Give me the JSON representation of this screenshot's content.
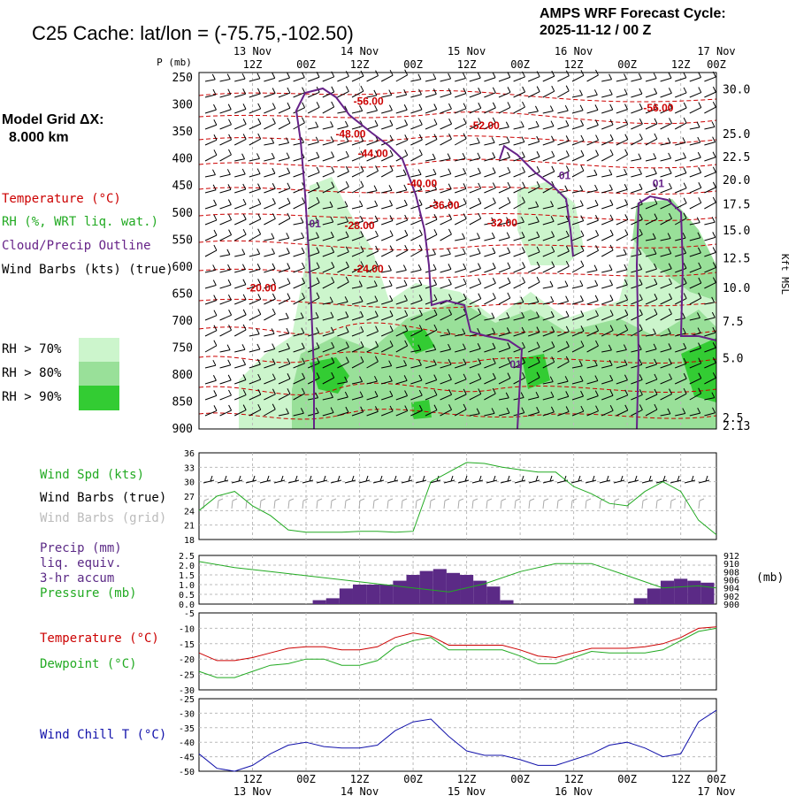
{
  "header": {
    "title": "C25 Cache:  lat/lon = (-75.75,-102.50)",
    "cycle_line1": "AMPS WRF Forecast Cycle:",
    "cycle_line2": "2025-11-12 / 00  Z"
  },
  "grid_info": {
    "line1": "Model Grid ΔX:",
    "line2": "8.000 km"
  },
  "time_axis": {
    "top_hours": [
      "12Z",
      "00Z",
      "12Z",
      "00Z",
      "12Z",
      "00Z",
      "12Z",
      "00Z",
      "12Z",
      "00Z"
    ],
    "days": [
      {
        "label": "13 Nov",
        "at": 1
      },
      {
        "label": "14 Nov",
        "at": 3
      },
      {
        "label": "15 Nov",
        "at": 5
      },
      {
        "label": "16 Nov",
        "at": 7
      },
      {
        "label": "17 Nov",
        "at": 9
      }
    ],
    "range_hours": [
      0,
      116
    ]
  },
  "colors": {
    "temperature": "#cc0000",
    "rh": "#22aa22",
    "cloud": "#662288",
    "wind_chill": "#1111aa",
    "rh70": "#ccf5cc",
    "rh80": "#99e099",
    "rh90": "#33cc33",
    "precip": "#5b2a86",
    "grid_barb": "#aaaaaa"
  },
  "legend": {
    "temperature": "Temperature (°C)",
    "rh": "RH (%, WRT liq. wat.)",
    "cloud": "Cloud/Precip Outline",
    "wind": "Wind Barbs (kts) (true)",
    "rh70": "RH > 70%",
    "rh80": "RH > 80%",
    "rh90": "RH > 90%"
  },
  "chart_data": [
    {
      "type": "time-height cross-section",
      "left_axis_title": "P (mb)",
      "right_axis_title": "Kft MSL",
      "pressure_ticks": [
        250,
        300,
        350,
        400,
        450,
        500,
        550,
        600,
        650,
        700,
        750,
        800,
        850,
        900
      ],
      "kft_ticks": [
        {
          "label": "30.0",
          "p": 272
        },
        {
          "label": "25.0",
          "p": 355
        },
        {
          "label": "22.5",
          "p": 397
        },
        {
          "label": "20.0",
          "p": 440
        },
        {
          "label": "17.5",
          "p": 485
        },
        {
          "label": "15.0",
          "p": 533
        },
        {
          "label": "12.5",
          "p": 585
        },
        {
          "label": "10.0",
          "p": 640
        },
        {
          "label": "7.5",
          "p": 702
        },
        {
          "label": "5.0",
          "p": 770
        },
        {
          "label": "2.5",
          "p": 880
        },
        {
          "label": "2.13",
          "p": 895
        }
      ],
      "temperature_labels": [
        {
          "text": "-56.00",
          "t": 38,
          "p": 300
        },
        {
          "text": "-56.00",
          "t": 103,
          "p": 312
        },
        {
          "text": "-52.00",
          "t": 64,
          "p": 345
        },
        {
          "text": "-48.00",
          "t": 34,
          "p": 360
        },
        {
          "text": "-44.00",
          "t": 39,
          "p": 396
        },
        {
          "text": "-40.00",
          "t": 50,
          "p": 452
        },
        {
          "text": "-36.00",
          "t": 55,
          "p": 492
        },
        {
          "text": "-32.00",
          "t": 68,
          "p": 525
        },
        {
          "text": "-28.00",
          "t": 36,
          "p": 530
        },
        {
          "text": "-24.00",
          "t": 38,
          "p": 610
        },
        {
          "text": "-20.00",
          "t": 14,
          "p": 645
        }
      ],
      "cloud_labels": [
        {
          "text": "01",
          "t": 26,
          "p": 527
        },
        {
          "text": "01",
          "t": 82,
          "p": 437
        },
        {
          "text": "01",
          "t": 103,
          "p": 452
        },
        {
          "text": "01",
          "t": 71,
          "p": 787
        }
      ]
    },
    {
      "type": "line",
      "series_label": "Wind Spd (kts)",
      "barbs_true_label": "Wind Barbs (true)",
      "barbs_grid_label": "Wind Barbs (grid)",
      "yticks": [
        18,
        21,
        24,
        27,
        30,
        33,
        36
      ],
      "ylim": [
        18,
        36
      ],
      "x": [
        0,
        4,
        8,
        12,
        16,
        20,
        24,
        28,
        32,
        36,
        40,
        44,
        48,
        52,
        56,
        60,
        64,
        68,
        72,
        76,
        80,
        84,
        88,
        92,
        96,
        100,
        104,
        108,
        112,
        116
      ],
      "values": [
        24,
        27,
        28,
        25,
        23,
        20,
        19.5,
        19.5,
        19.5,
        19.7,
        19.7,
        19.5,
        19.7,
        30,
        32,
        34,
        33.8,
        33,
        32.5,
        32,
        32,
        29,
        27.5,
        25.5,
        25,
        28,
        30,
        28,
        22,
        19
      ]
    },
    {
      "type": "bar+line",
      "precip_label_lines": [
        "Precip (mm)",
        "liq. equiv.",
        "3-hr accum"
      ],
      "pressure_label": "Pressure (mb)",
      "left_ticks": [
        "0.0",
        "0.5",
        "1.0",
        "1.5",
        "2.0",
        "2.5"
      ],
      "right_ticks": [
        "900",
        "902",
        "904",
        "906",
        "908",
        "910",
        "912"
      ],
      "right_unit": "(mb)",
      "precip_ylim": [
        0,
        2.5
      ],
      "pressure_ylim": [
        900,
        912
      ],
      "precip_x": [
        27,
        30,
        33,
        36,
        39,
        42,
        45,
        48,
        51,
        54,
        57,
        60,
        63,
        66,
        69,
        99,
        102,
        105,
        108,
        111,
        114
      ],
      "precip_values": [
        0.2,
        0.3,
        0.8,
        1.0,
        1.0,
        1.0,
        1.2,
        1.5,
        1.7,
        1.8,
        1.6,
        1.5,
        1.2,
        0.9,
        0.2,
        0.3,
        0.8,
        1.2,
        1.3,
        1.2,
        1.1
      ],
      "pressure_x": [
        0,
        8,
        16,
        24,
        32,
        40,
        48,
        56,
        64,
        72,
        80,
        88,
        96,
        104,
        112,
        116
      ],
      "pressure_values": [
        910.5,
        909,
        908,
        907,
        906,
        905,
        904,
        903,
        905,
        908,
        910,
        910,
        907,
        904,
        904.5,
        904
      ]
    },
    {
      "type": "line",
      "temperature_label": "Temperature (°C)",
      "dewpoint_label": "Dewpoint (°C)",
      "yticks": [
        -30,
        -25,
        -20,
        -15,
        -10,
        -5
      ],
      "ylim": [
        -30,
        -5
      ],
      "x": [
        0,
        4,
        8,
        12,
        16,
        20,
        24,
        28,
        32,
        36,
        40,
        44,
        48,
        52,
        56,
        60,
        64,
        68,
        72,
        76,
        80,
        84,
        88,
        92,
        96,
        100,
        104,
        108,
        112,
        116
      ],
      "series": [
        {
          "name": "Temperature",
          "values": [
            -18,
            -20.5,
            -20.5,
            -19.5,
            -18,
            -16.5,
            -16,
            -16,
            -17,
            -17,
            -16,
            -13,
            -11.5,
            -12.5,
            -15.5,
            -15.5,
            -15.5,
            -15.5,
            -17,
            -19,
            -19.5,
            -18,
            -16.5,
            -16.5,
            -16.5,
            -16,
            -15,
            -13,
            -10,
            -9.5
          ]
        },
        {
          "name": "Dewpoint",
          "values": [
            -24,
            -26,
            -26,
            -24,
            -22,
            -21.5,
            -20,
            -20,
            -22,
            -22,
            -20.5,
            -16,
            -14,
            -13,
            -17,
            -17,
            -17,
            -17,
            -19,
            -21.5,
            -21.5,
            -19.5,
            -17.5,
            -18,
            -18,
            -18,
            -17,
            -14,
            -11,
            -10
          ]
        }
      ]
    },
    {
      "type": "line",
      "series_label": "Wind Chill T (°C)",
      "yticks": [
        -50,
        -45,
        -40,
        -35,
        -30,
        -25
      ],
      "ylim": [
        -50,
        -25
      ],
      "x": [
        0,
        4,
        8,
        12,
        16,
        20,
        24,
        28,
        32,
        36,
        40,
        44,
        48,
        52,
        56,
        60,
        64,
        68,
        72,
        76,
        80,
        84,
        88,
        92,
        96,
        100,
        104,
        108,
        112,
        116
      ],
      "values": [
        -44,
        -49,
        -50,
        -48,
        -44,
        -41,
        -40,
        -41.5,
        -42,
        -42,
        -41,
        -36,
        -33,
        -32,
        -38,
        -43,
        -44.5,
        -44.5,
        -46,
        -48,
        -48,
        -46,
        -44,
        -41,
        -40,
        -42,
        -45,
        -44,
        -33,
        -29
      ]
    }
  ]
}
